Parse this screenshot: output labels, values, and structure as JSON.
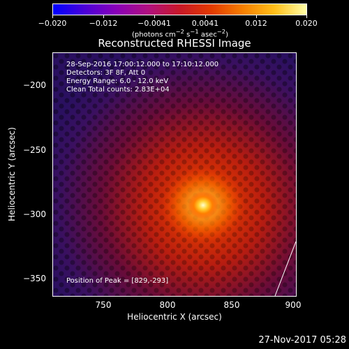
{
  "colorbar": {
    "tick_labels": [
      "−0.020",
      "−0.012",
      "−0.0041",
      "0.0041",
      "0.012",
      "0.020"
    ],
    "units_prefix": "(photons cm",
    "units_sup1": "−2",
    "units_mid1": " s",
    "units_sup2": "−1",
    "units_mid2": " asec",
    "units_sup3": "−2",
    "units_suffix": ")",
    "gradient_colors": [
      "#0000ff",
      "#4b00d8",
      "#8a00b8",
      "#b01080",
      "#c81828",
      "#e23a00",
      "#f57f00",
      "#ffc01a",
      "#ffffa8"
    ]
  },
  "title": "Reconstructed RHESSI Image",
  "info": {
    "line1": "28-Sep-2016 17:00:12.000 to 17:10:12.000",
    "line2": "Detectors: 3F 8F, Att 0",
    "line3": "Energy Range: 6.0 - 12.0 keV",
    "line4": "Clean    Total counts: 2.83E+04",
    "peak": "Position of Peak = [829,-293]"
  },
  "axes": {
    "xlabel": "Heliocentric X (arcsec)",
    "ylabel": "Heliocentric Y (arcsec)",
    "xticks": [
      "750",
      "800",
      "850",
      "900"
    ],
    "yticks": [
      "−200",
      "−250",
      "−300",
      "−350"
    ]
  },
  "timestamp": "27-Nov-2017 05:28"
}
